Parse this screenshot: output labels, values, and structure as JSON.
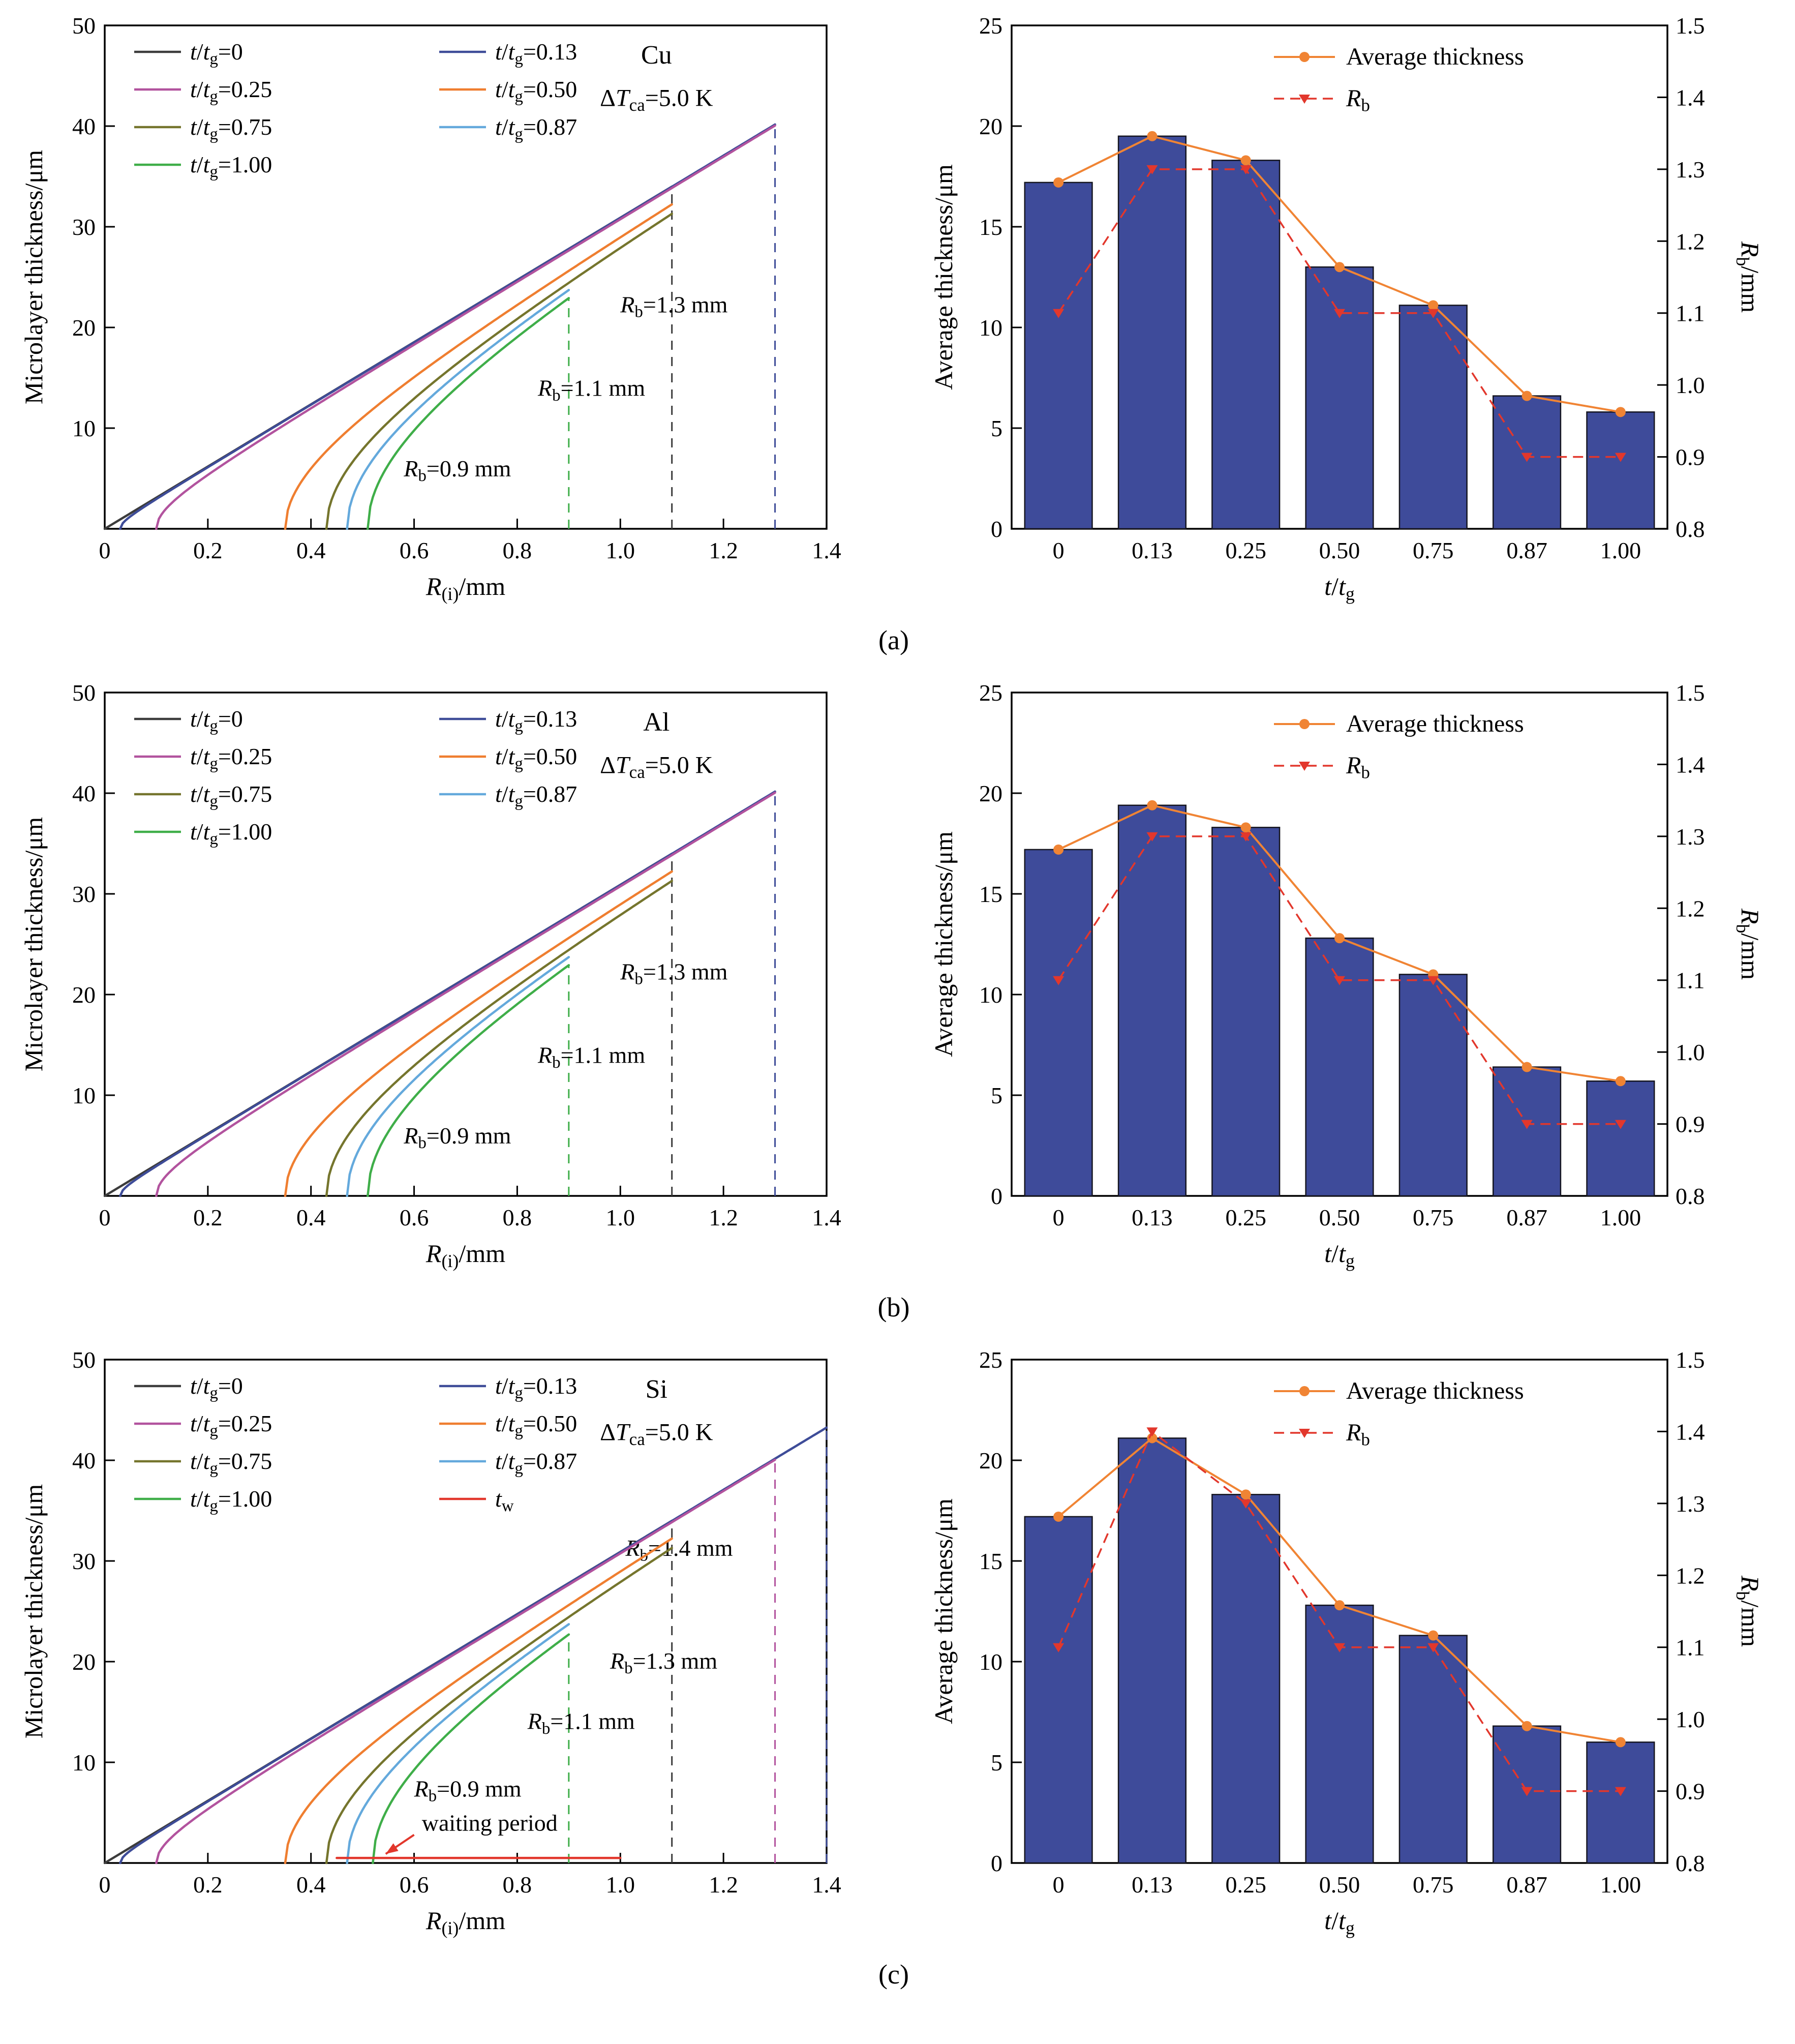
{
  "chart_data": [
    {
      "caption": "(a)",
      "left": {
        "type": "line",
        "material": "Cu",
        "subtitle": "Δ*T*_{ca}=5.0 K",
        "xlabel": "*R*_{(i)}/mm",
        "ylabel": "Microlayer thickness/μm",
        "xlim": [
          0,
          1.4
        ],
        "ylim": [
          0,
          50
        ],
        "xticks": [
          0,
          0.2,
          0.4,
          0.6,
          0.8,
          1.0,
          1.2,
          1.4
        ],
        "xtick_labels": [
          "0",
          "0.2",
          "0.4",
          "0.6",
          "0.8",
          "1.0",
          "1.2",
          "1.4"
        ],
        "yticks": [
          0,
          10,
          20,
          30,
          40,
          50
        ],
        "ytick_labels": [
          "",
          "10",
          "20",
          "30",
          "40",
          "50"
        ],
        "slope": 30.9,
        "series": [
          {
            "label": "*t*/*t*_{g}=0",
            "color": "#3c3c3c",
            "x0": 0,
            "xend": 1.1
          },
          {
            "label": "*t*/*t*_{g}=0.13",
            "color": "#3e4c98",
            "x0": 0.03,
            "xend": 1.3
          },
          {
            "label": "*t*/*t*_{g}=0.25",
            "color": "#b2539e",
            "x0": 0.1,
            "xend": 1.3
          },
          {
            "label": "*t*/*t*_{g}=0.50",
            "color": "#ef7e30",
            "x0": 0.35,
            "xend": 1.1
          },
          {
            "label": "*t*/*t*_{g}=0.75",
            "color": "#75752d",
            "x0": 0.43,
            "xend": 1.1
          },
          {
            "label": "*t*/*t*_{g}=0.87",
            "color": "#64a9dc",
            "x0": 0.47,
            "xend": 0.9
          },
          {
            "label": "*t*/*t*_{g}=1.00",
            "color": "#3fae49",
            "x0": 0.51,
            "xend": 0.9
          }
        ],
        "dashed_lines": [
          {
            "x": 0.9,
            "ytop": 22.9,
            "color": "#3fae49",
            "label": "*R*_{b}=0.9 mm",
            "label_x": 0.58,
            "label_y": 5.2
          },
          {
            "x": 1.1,
            "ytop": 34.0,
            "color": "#3c3c3c",
            "label": "*R*_{b}=1.1 mm",
            "label_x": 0.84,
            "label_y": 13.2
          },
          {
            "x": 1.3,
            "ytop": 40.1,
            "color": "#3e4c98",
            "label": "*R*_{b}=1.3 mm",
            "label_x": 1.0,
            "label_y": 21.5
          }
        ]
      },
      "right": {
        "type": "bar",
        "xlabel": "*t*/*t*_{g}",
        "ylabel_left": "Average thickness/μm",
        "ylabel_right": "*R*_{b}/mm",
        "categories": [
          "0",
          "0.13",
          "0.25",
          "0.50",
          "0.75",
          "0.87",
          "1.00"
        ],
        "avg_thickness": [
          17.2,
          19.5,
          18.3,
          13.0,
          11.1,
          6.6,
          5.8
        ],
        "rb": [
          1.1,
          1.3,
          1.3,
          1.1,
          1.1,
          0.9,
          0.9
        ],
        "ylim_left": [
          0,
          25
        ],
        "yticks_left": [
          0,
          5,
          10,
          15,
          20,
          25
        ],
        "ytick_labels_left": [
          "0",
          "5",
          "10",
          "15",
          "20",
          "25"
        ],
        "ylim_right": [
          0.8,
          1.5
        ],
        "yticks_right": [
          0.8,
          0.9,
          1.0,
          1.1,
          1.2,
          1.3,
          1.4,
          1.5
        ],
        "ytick_labels_right": [
          "0.8",
          "0.9",
          "1.0",
          "1.1",
          "1.2",
          "1.3",
          "1.4",
          "1.5"
        ],
        "legend": [
          {
            "label": "Average thickness",
            "type": "avg"
          },
          {
            "label": "*R*_{b}",
            "type": "rb"
          }
        ],
        "bar_color": "#3e4b9a",
        "avg_color": "#f08434",
        "rb_color": "#e2372c"
      }
    },
    {
      "caption": "(b)",
      "left": {
        "type": "line",
        "material": "Al",
        "subtitle": "Δ*T*_{ca}=5.0 K",
        "xlabel": "*R*_{(i)}/mm",
        "ylabel": "Microlayer thickness/μm",
        "xlim": [
          0,
          1.4
        ],
        "ylim": [
          0,
          50
        ],
        "xticks": [
          0,
          0.2,
          0.4,
          0.6,
          0.8,
          1.0,
          1.2,
          1.4
        ],
        "xtick_labels": [
          "0",
          "0.2",
          "0.4",
          "0.6",
          "0.8",
          "1.0",
          "1.2",
          "1.4"
        ],
        "yticks": [
          0,
          10,
          20,
          30,
          40,
          50
        ],
        "ytick_labels": [
          "",
          "10",
          "20",
          "30",
          "40",
          "50"
        ],
        "slope": 30.9,
        "series": [
          {
            "label": "*t*/*t*_{g}=0",
            "color": "#3c3c3c",
            "x0": 0,
            "xend": 1.1
          },
          {
            "label": "*t*/*t*_{g}=0.13",
            "color": "#3e4c98",
            "x0": 0.03,
            "xend": 1.3
          },
          {
            "label": "*t*/*t*_{g}=0.25",
            "color": "#b2539e",
            "x0": 0.1,
            "xend": 1.3
          },
          {
            "label": "*t*/*t*_{g}=0.50",
            "color": "#ef7e30",
            "x0": 0.35,
            "xend": 1.1
          },
          {
            "label": "*t*/*t*_{g}=0.75",
            "color": "#75752d",
            "x0": 0.43,
            "xend": 1.1
          },
          {
            "label": "*t*/*t*_{g}=0.87",
            "color": "#64a9dc",
            "x0": 0.47,
            "xend": 0.9
          },
          {
            "label": "*t*/*t*_{g}=1.00",
            "color": "#3fae49",
            "x0": 0.51,
            "xend": 0.9
          }
        ],
        "dashed_lines": [
          {
            "x": 0.9,
            "ytop": 22.9,
            "color": "#3fae49",
            "label": "*R*_{b}=0.9 mm",
            "label_x": 0.58,
            "label_y": 5.2
          },
          {
            "x": 1.1,
            "ytop": 34.0,
            "color": "#3c3c3c",
            "label": "*R*_{b}=1.1 mm",
            "label_x": 0.84,
            "label_y": 13.2
          },
          {
            "x": 1.3,
            "ytop": 40.1,
            "color": "#3e4c98",
            "label": "*R*_{b}=1.3 mm",
            "label_x": 1.0,
            "label_y": 21.5
          }
        ]
      },
      "right": {
        "type": "bar",
        "xlabel": "*t*/*t*_{g}",
        "ylabel_left": "Average thickness/μm",
        "ylabel_right": "*R*_{b}/mm",
        "categories": [
          "0",
          "0.13",
          "0.25",
          "0.50",
          "0.75",
          "0.87",
          "1.00"
        ],
        "avg_thickness": [
          17.2,
          19.4,
          18.3,
          12.8,
          11.0,
          6.4,
          5.7
        ],
        "rb": [
          1.1,
          1.3,
          1.3,
          1.1,
          1.1,
          0.9,
          0.9
        ],
        "ylim_left": [
          0,
          25
        ],
        "yticks_left": [
          0,
          5,
          10,
          15,
          20,
          25
        ],
        "ytick_labels_left": [
          "0",
          "5",
          "10",
          "15",
          "20",
          "25"
        ],
        "ylim_right": [
          0.8,
          1.5
        ],
        "yticks_right": [
          0.8,
          0.9,
          1.0,
          1.1,
          1.2,
          1.3,
          1.4,
          1.5
        ],
        "ytick_labels_right": [
          "0.8",
          "0.9",
          "1.0",
          "1.1",
          "1.2",
          "1.3",
          "1.4",
          "1.5"
        ],
        "legend": [
          {
            "label": "Average thickness",
            "type": "avg"
          },
          {
            "label": "*R*_{b}",
            "type": "rb"
          }
        ],
        "bar_color": "#3e4b9a",
        "avg_color": "#f08434",
        "rb_color": "#e2372c"
      }
    },
    {
      "caption": "(c)",
      "left": {
        "type": "line",
        "material": "Si",
        "subtitle": "Δ*T*_{ca}=5.0 K",
        "xlabel": "*R*_{(i)}/mm",
        "ylabel": "Microlayer thickness/μm",
        "xlim": [
          0,
          1.4
        ],
        "ylim": [
          0,
          50
        ],
        "xticks": [
          0,
          0.2,
          0.4,
          0.6,
          0.8,
          1.0,
          1.2,
          1.4
        ],
        "xtick_labels": [
          "0",
          "0.2",
          "0.4",
          "0.6",
          "0.8",
          "1.0",
          "1.2",
          "1.4"
        ],
        "yticks": [
          0,
          10,
          20,
          30,
          40,
          50
        ],
        "ytick_labels": [
          "",
          "10",
          "20",
          "30",
          "40",
          "50"
        ],
        "slope": 30.9,
        "series": [
          {
            "label": "*t*/*t*_{g}=0",
            "color": "#3c3c3c",
            "x0": 0,
            "xend": 1.1
          },
          {
            "label": "*t*/*t*_{g}=0.13",
            "color": "#3e4c98",
            "x0": 0.03,
            "xend": 1.4
          },
          {
            "label": "*t*/*t*_{g}=0.25",
            "color": "#b2539e",
            "x0": 0.1,
            "xend": 1.3
          },
          {
            "label": "*t*/*t*_{g}=0.50",
            "color": "#ef7e30",
            "x0": 0.35,
            "xend": 1.1
          },
          {
            "label": "*t*/*t*_{g}=0.75",
            "color": "#75752d",
            "x0": 0.43,
            "xend": 1.1
          },
          {
            "label": "*t*/*t*_{g}=0.87",
            "color": "#64a9dc",
            "x0": 0.47,
            "xend": 0.9
          },
          {
            "label": "*t*/*t*_{g}=1.00",
            "color": "#3fae49",
            "x0": 0.52,
            "xend": 0.9
          },
          {
            "label": "*t*_{w}",
            "color": "#e2372c",
            "flat": true,
            "y": 0.5,
            "x0": 0.45,
            "xend": 1.0
          }
        ],
        "dashed_lines": [
          {
            "x": 0.9,
            "ytop": 22.7,
            "color": "#3fae49",
            "label": "*R*_{b}=0.9 mm",
            "label_x": 0.6,
            "label_y": 6.6
          },
          {
            "x": 1.1,
            "ytop": 34.0,
            "color": "#3c3c3c",
            "label": "*R*_{b}=1.1 mm",
            "label_x": 0.82,
            "label_y": 13.3
          },
          {
            "x": 1.3,
            "ytop": 40.1,
            "color": "#b2539e",
            "label": "*R*_{b}=1.3 mm",
            "label_x": 0.98,
            "label_y": 19.3
          },
          {
            "x": 1.4,
            "ytop": 43.2,
            "color": "#3e4c98",
            "label": "*R*_{b}=1.4 mm",
            "label_x": 1.01,
            "label_y": 30.5
          }
        ],
        "annotation": {
          "text": "waiting period",
          "x": 0.615,
          "y": 3.2,
          "arrow": {
            "x1": 0.6,
            "y1": 2.8,
            "x2": 0.545,
            "y2": 0.9
          }
        }
      },
      "right": {
        "type": "bar",
        "xlabel": "*t*/*t*_{g}",
        "ylabel_left": "Average thickness/μm",
        "ylabel_right": "*R*_{b}/mm",
        "categories": [
          "0",
          "0.13",
          "0.25",
          "0.50",
          "0.75",
          "0.87",
          "1.00"
        ],
        "avg_thickness": [
          17.2,
          21.1,
          18.3,
          12.8,
          11.3,
          6.8,
          6.0
        ],
        "rb": [
          1.1,
          1.4,
          1.3,
          1.1,
          1.1,
          0.9,
          0.9
        ],
        "ylim_left": [
          0,
          25
        ],
        "yticks_left": [
          0,
          5,
          10,
          15,
          20,
          25
        ],
        "ytick_labels_left": [
          "0",
          "5",
          "10",
          "15",
          "20",
          "25"
        ],
        "ylim_right": [
          0.8,
          1.5
        ],
        "yticks_right": [
          0.8,
          0.9,
          1.0,
          1.1,
          1.2,
          1.3,
          1.4,
          1.5
        ],
        "ytick_labels_right": [
          "0.8",
          "0.9",
          "1.0",
          "1.1",
          "1.2",
          "1.3",
          "1.4",
          "1.5"
        ],
        "legend": [
          {
            "label": "Average thickness",
            "type": "avg"
          },
          {
            "label": "*R*_{b}",
            "type": "rb"
          }
        ],
        "bar_color": "#3e4b9a",
        "avg_color": "#f08434",
        "rb_color": "#e2372c"
      }
    }
  ]
}
